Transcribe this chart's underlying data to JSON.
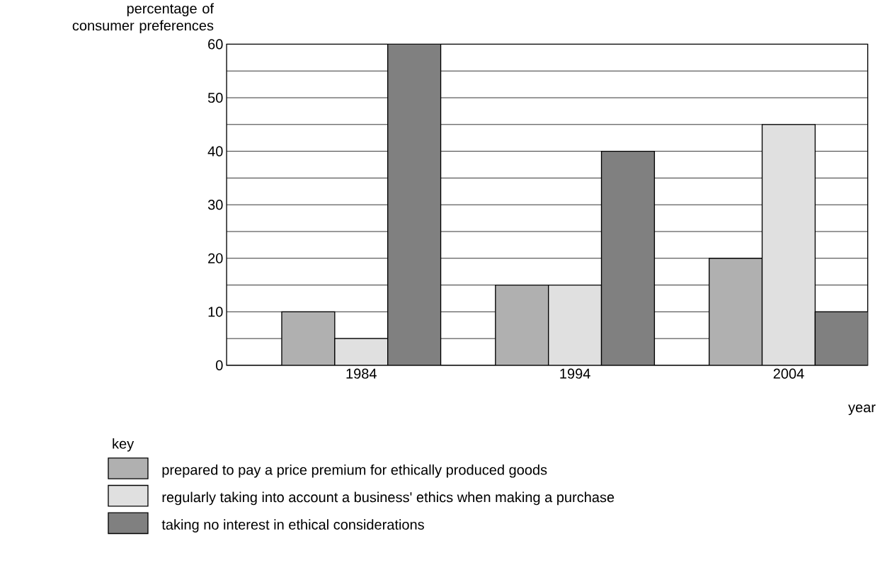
{
  "chart_data": {
    "type": "bar",
    "categories": [
      "1984",
      "1994",
      "2004"
    ],
    "series": [
      {
        "name": "prepared to pay a price premium for ethically produced goods",
        "color": "#b0b0b0",
        "values": [
          10,
          15,
          20
        ]
      },
      {
        "name": "regularly taking into account a business' ethics when making a purchase",
        "color": "#e0e0e0",
        "values": [
          5,
          15,
          45
        ]
      },
      {
        "name": "taking no interest in ethical considerations",
        "color": "#808080",
        "values": [
          60,
          40,
          10
        ]
      }
    ],
    "xlabel": "year",
    "ylabel": "percentage of consumer preferences",
    "legend_title": "key",
    "ylim": [
      0,
      60
    ],
    "yticks": [
      0,
      {
        "value": 5,
        "label": null
      },
      10,
      {
        "value": 15,
        "label": null
      },
      20,
      {
        "value": 25,
        "label": null
      },
      30,
      {
        "value": 35,
        "label": null
      },
      40,
      {
        "value": 45,
        "label": null
      },
      50,
      {
        "value": 55,
        "label": null
      },
      60
    ],
    "grid": "y",
    "legend": "bottom"
  }
}
